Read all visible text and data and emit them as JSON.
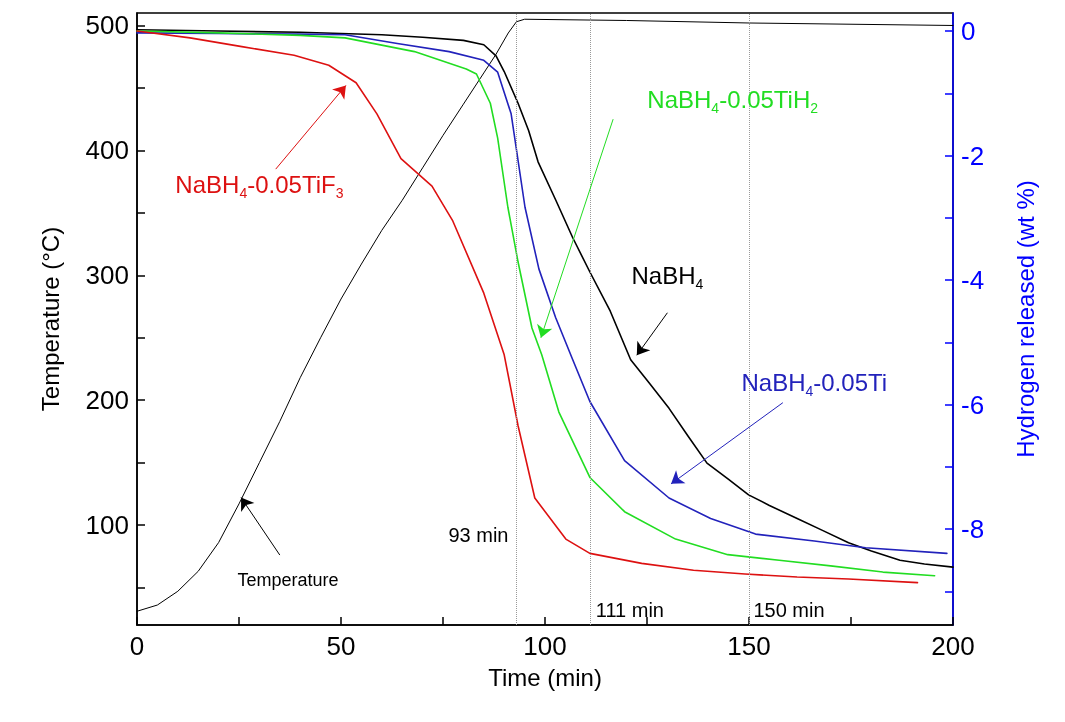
{
  "chart_data": {
    "type": "line",
    "xlabel": "Time (min)",
    "ylabel": "Temperature (°C)",
    "y2label": "Hydrogen released (wt %)",
    "xlim": [
      0,
      200
    ],
    "xticks": [
      0,
      {
        "value": 25,
        "label": null
      },
      50,
      {
        "value": 75,
        "label": null
      },
      100,
      {
        "value": 125,
        "label": null
      },
      150,
      {
        "value": 175,
        "label": null
      },
      200
    ],
    "ylim": [
      20,
      510
    ],
    "yticks": [
      {
        "value": 50,
        "label": null
      },
      100,
      {
        "value": 150,
        "label": null
      },
      200,
      {
        "value": 250,
        "label": null
      },
      300,
      {
        "value": 350,
        "label": null
      },
      400,
      {
        "value": 450,
        "label": null
      },
      500
    ],
    "y2lim": [
      -9.54,
      0.29
    ],
    "y2ticks": [
      {
        "value": -9,
        "label": null
      },
      -8,
      {
        "value": -7,
        "label": null
      },
      -6,
      {
        "value": -5,
        "label": null
      },
      -4,
      {
        "value": -3,
        "label": null
      },
      -2,
      {
        "value": -1,
        "label": null
      },
      0
    ],
    "legend": false,
    "grid": false,
    "marker": "none",
    "line_style": "solid",
    "series": [
      {
        "name": "Temperature",
        "color": "#000000",
        "x": [
          0,
          5,
          10,
          15,
          20,
          25,
          30,
          35,
          40,
          45,
          50,
          55,
          60,
          65,
          70,
          75,
          80,
          85,
          88,
          91,
          93,
          95,
          120,
          150,
          200
        ],
        "values": [
          31,
          36,
          47,
          63,
          86,
          117,
          150,
          183,
          218,
          250,
          281,
          309,
          336,
          360,
          386,
          412,
          437,
          462,
          477,
          494,
          503,
          505,
          504,
          502,
          500
        ]
      },
      {
        "name": "NaBH$_{4}$",
        "color": "#000000",
        "axis": "y2",
        "x": [
          0,
          20,
          40,
          60,
          70,
          80,
          85,
          88,
          90,
          93.4,
          96,
          98.3,
          102.6,
          106.8,
          111,
          116,
          121,
          125.5,
          130.4,
          135,
          139.7,
          145,
          149.9,
          155,
          161.8,
          168,
          174.4,
          180,
          187,
          193,
          200
        ],
        "values": [
          0.02,
          0.0,
          -0.02,
          -0.06,
          -0.1,
          -0.15,
          -0.22,
          -0.4,
          -0.65,
          -1.16,
          -1.6,
          -2.1,
          -2.71,
          -3.32,
          -3.87,
          -4.5,
          -5.28,
          -5.65,
          -6.06,
          -6.5,
          -6.94,
          -7.2,
          -7.45,
          -7.62,
          -7.83,
          -8.02,
          -8.22,
          -8.35,
          -8.5,
          -8.56,
          -8.61
        ]
      },
      {
        "name": "NaBH$_{4}$-0.05Ti",
        "color": "#2222bb",
        "axis": "y2",
        "x": [
          0,
          20,
          40,
          51,
          63.8,
          76.5,
          85,
          88.4,
          91.7,
          95.1,
          98.5,
          102.6,
          106.8,
          111,
          119.5,
          130.4,
          140.6,
          151.6,
          166,
          178.6,
          198.5
        ],
        "values": [
          -0.03,
          -0.04,
          -0.05,
          -0.06,
          -0.2,
          -0.33,
          -0.47,
          -0.66,
          -1.33,
          -2.83,
          -3.82,
          -4.6,
          -5.28,
          -5.95,
          -6.9,
          -7.5,
          -7.83,
          -8.08,
          -8.19,
          -8.3,
          -8.39
        ]
      },
      {
        "name": "NaBH$_{4}$-0.05TiH$_{2}$",
        "color": "#22dd22",
        "axis": "y2",
        "x": [
          0,
          20,
          40,
          51,
          68,
          80.7,
          83.2,
          86.6,
          88.4,
          90.9,
          93.4,
          96.8,
          99.2,
          103.4,
          111,
          119.5,
          132,
          144.8,
          157.4,
          170,
          182.8,
          195.5
        ],
        "values": [
          0.0,
          -0.03,
          -0.07,
          -0.11,
          -0.33,
          -0.61,
          -0.69,
          -1.16,
          -1.72,
          -2.83,
          -3.71,
          -4.77,
          -5.2,
          -6.12,
          -7.17,
          -7.72,
          -8.16,
          -8.41,
          -8.5,
          -8.59,
          -8.69,
          -8.75
        ]
      },
      {
        "name": "NaBH$_{4}$-0.05TiF$_{3}$",
        "color": "#dd1111",
        "axis": "y2",
        "x": [
          0,
          13,
          25.7,
          38.5,
          47,
          53.7,
          58.8,
          64.7,
          72.3,
          77.4,
          85,
          90,
          93.4,
          97.5,
          105.1,
          111,
          123.7,
          136.4,
          149,
          161.8,
          174.4,
          191.3
        ],
        "values": [
          0.0,
          -0.11,
          -0.25,
          -0.39,
          -0.55,
          -0.83,
          -1.33,
          -2.05,
          -2.49,
          -3.05,
          -4.21,
          -5.2,
          -6.34,
          -7.5,
          -8.16,
          -8.39,
          -8.55,
          -8.66,
          -8.72,
          -8.77,
          -8.8,
          -8.86
        ]
      }
    ],
    "ref_lines": [
      {
        "axis": "x",
        "value": 93,
        "label": "93 min",
        "color": "#999999",
        "line_style": "dotted"
      },
      {
        "axis": "x",
        "value": 111,
        "label": "111 min",
        "color": "#999999",
        "line_style": "dotted"
      },
      {
        "axis": "x",
        "value": 150,
        "label": "150 min",
        "color": "#999999",
        "line_style": "dotted"
      }
    ]
  }
}
